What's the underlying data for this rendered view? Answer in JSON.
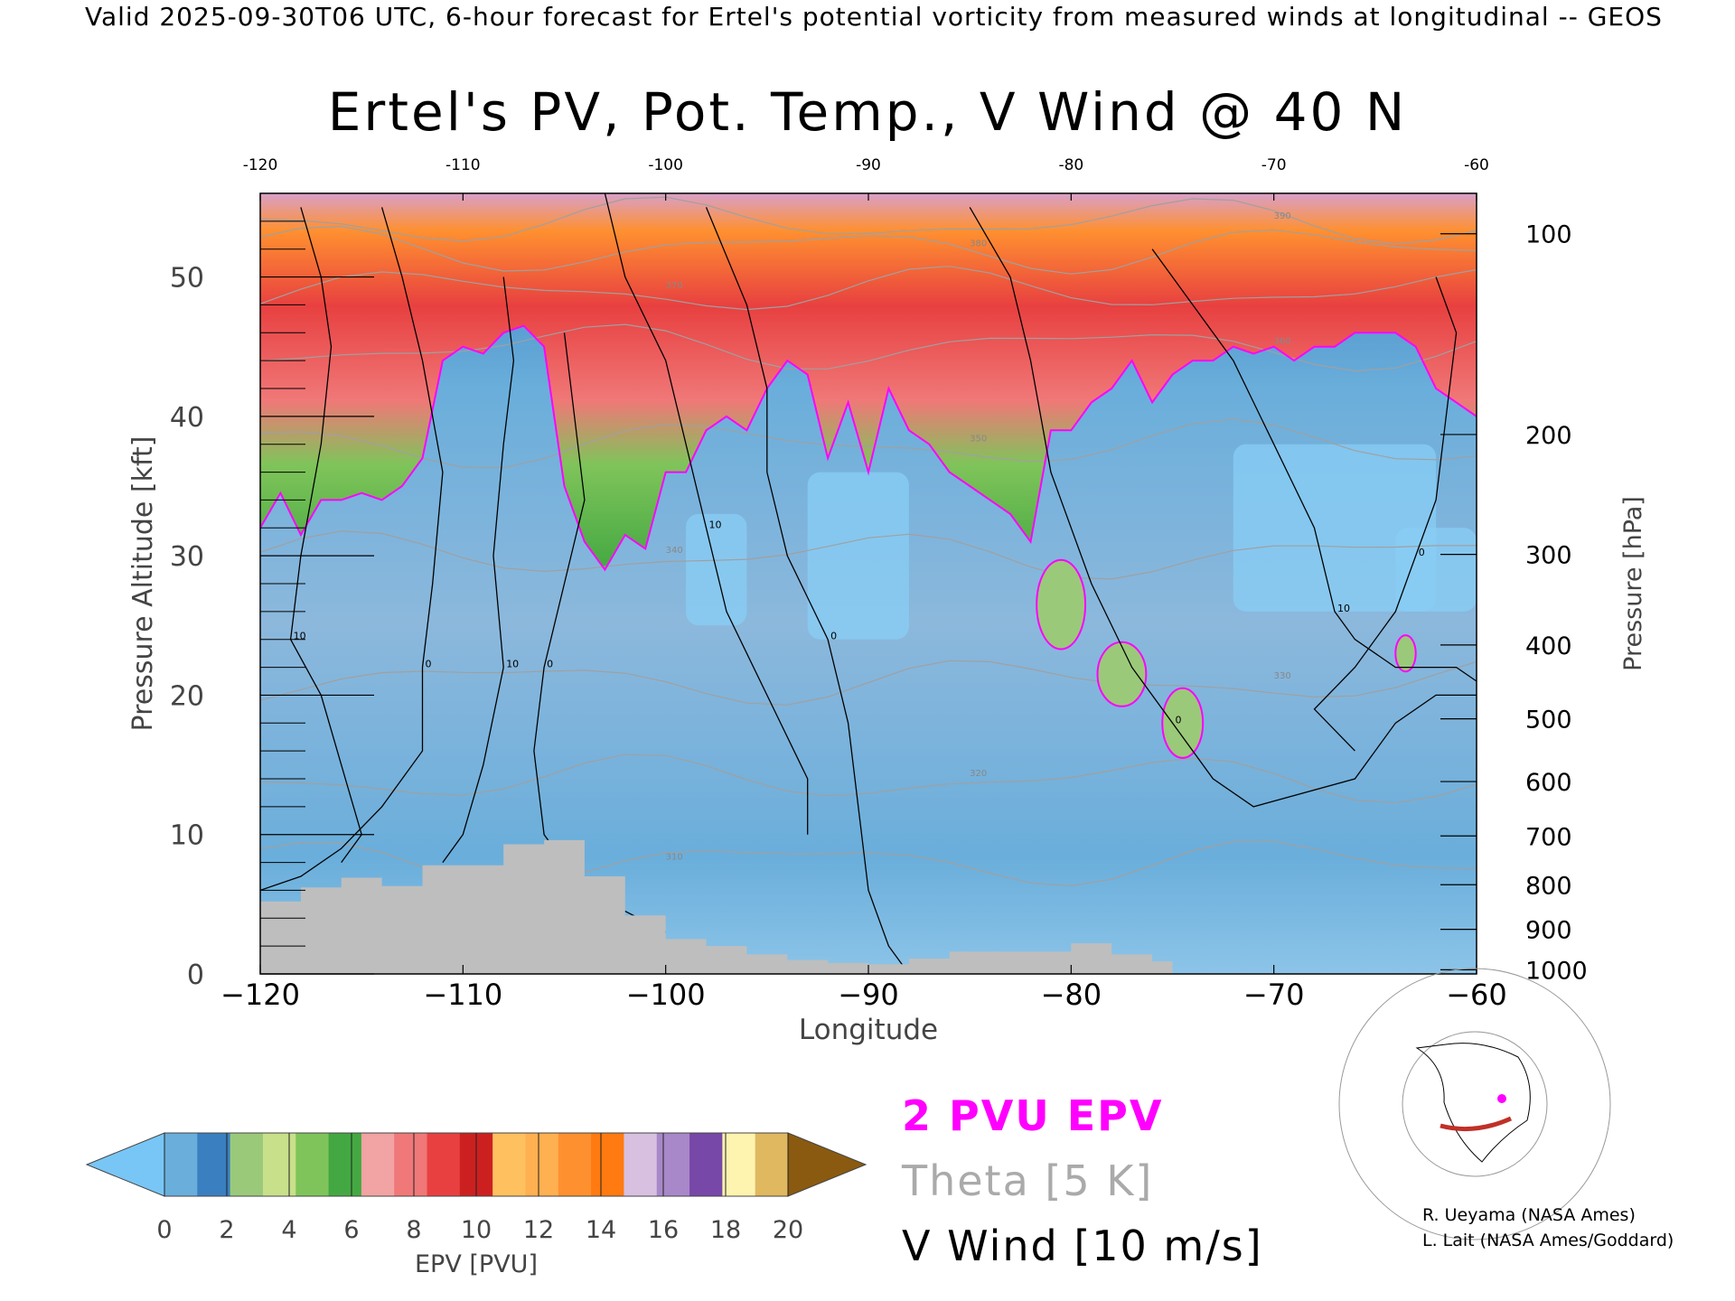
{
  "header": "Valid 2025-09-30T06 UTC, 6-hour forecast for Ertel's potential vorticity from measured winds at longitudinal -- GEOS",
  "title": "Ertel's PV, Pot. Temp., V Wind @ 40 N",
  "legend": {
    "epv_contour": "2 PVU EPV",
    "theta": "Theta [5 K]",
    "vwind": "V Wind [10 m/s]"
  },
  "colors": {
    "epv_contour": "#ff00ff",
    "theta": "#a0a0a0",
    "vwind": "#000000",
    "terrain": "#bebebe",
    "colorbar": [
      "#78c6f5",
      "#6aaedb",
      "#3a7fc0",
      "#9bc97a",
      "#c8e08a",
      "#7fc45a",
      "#44a842",
      "#f2a3a3",
      "#f07878",
      "#e84040",
      "#cc2020",
      "#ffc060",
      "#ffb050",
      "#ff9030",
      "#ff7a10",
      "#d8c0e0",
      "#a888c8",
      "#7848a8",
      "#fff3b0",
      "#e0b860",
      "#8a5a10"
    ]
  },
  "credits": [
    "R. Ueyama (NASA Ames)",
    "L. Lait (NASA Ames/Goddard)"
  ],
  "chart_data": {
    "type": "heatmap",
    "xlabel": "Longitude",
    "ylabel": "Pressure Altitude [kft]",
    "y2label": "Pressure [hPa]",
    "xlim": [
      -120,
      -60
    ],
    "ylim": [
      0,
      56
    ],
    "x_ticks": [
      -120,
      -110,
      -100,
      -90,
      -80,
      -70,
      -60
    ],
    "top_ticks": [
      -120,
      -110,
      -100,
      -90,
      -80,
      -70,
      -60
    ],
    "y_ticks": [
      0,
      10,
      20,
      30,
      40,
      50
    ],
    "pressure_ticks": [
      {
        "label": "100",
        "kft": 53.1
      },
      {
        "label": "200",
        "kft": 38.7
      },
      {
        "label": "300",
        "kft": 30.1
      },
      {
        "label": "400",
        "kft": 23.6
      },
      {
        "label": "500",
        "kft": 18.3
      },
      {
        "label": "600",
        "kft": 13.8
      },
      {
        "label": "700",
        "kft": 9.9
      },
      {
        "label": "800",
        "kft": 6.4
      },
      {
        "label": "900",
        "kft": 3.2
      },
      {
        "label": "1000",
        "kft": 0.3
      }
    ],
    "colorbar": {
      "label": "EPV [PVU]",
      "ticks": [
        0,
        2,
        4,
        6,
        8,
        10,
        12,
        14,
        16,
        18,
        20
      ],
      "extend": "both"
    },
    "tropopause_2pvu": [
      {
        "lon": -120,
        "kft": 32
      },
      {
        "lon": -119,
        "kft": 34.5
      },
      {
        "lon": -118,
        "kft": 31.5
      },
      {
        "lon": -117,
        "kft": 34
      },
      {
        "lon": -116,
        "kft": 34
      },
      {
        "lon": -115,
        "kft": 34.5
      },
      {
        "lon": -114,
        "kft": 34
      },
      {
        "lon": -113,
        "kft": 35
      },
      {
        "lon": -112,
        "kft": 37
      },
      {
        "lon": -111,
        "kft": 44
      },
      {
        "lon": -110,
        "kft": 45
      },
      {
        "lon": -109,
        "kft": 44.5
      },
      {
        "lon": -108,
        "kft": 46
      },
      {
        "lon": -107,
        "kft": 46.5
      },
      {
        "lon": -106,
        "kft": 45
      },
      {
        "lon": -105,
        "kft": 35
      },
      {
        "lon": -104,
        "kft": 31
      },
      {
        "lon": -103,
        "kft": 29
      },
      {
        "lon": -102,
        "kft": 31.5
      },
      {
        "lon": -101,
        "kft": 30.5
      },
      {
        "lon": -100,
        "kft": 36
      },
      {
        "lon": -99,
        "kft": 36
      },
      {
        "lon": -98,
        "kft": 39
      },
      {
        "lon": -97,
        "kft": 40
      },
      {
        "lon": -96,
        "kft": 39
      },
      {
        "lon": -95,
        "kft": 42
      },
      {
        "lon": -94,
        "kft": 44
      },
      {
        "lon": -93,
        "kft": 43
      },
      {
        "lon": -92,
        "kft": 37
      },
      {
        "lon": -91,
        "kft": 41
      },
      {
        "lon": -90,
        "kft": 36
      },
      {
        "lon": -89,
        "kft": 42
      },
      {
        "lon": -88,
        "kft": 39
      },
      {
        "lon": -87,
        "kft": 38
      },
      {
        "lon": -86,
        "kft": 36
      },
      {
        "lon": -85,
        "kft": 35
      },
      {
        "lon": -84,
        "kft": 34
      },
      {
        "lon": -83,
        "kft": 33
      },
      {
        "lon": -82,
        "kft": 31
      },
      {
        "lon": -81,
        "kft": 39
      },
      {
        "lon": -80,
        "kft": 39
      },
      {
        "lon": -79,
        "kft": 41
      },
      {
        "lon": -78,
        "kft": 42
      },
      {
        "lon": -77,
        "kft": 44
      },
      {
        "lon": -76,
        "kft": 41
      },
      {
        "lon": -75,
        "kft": 43
      },
      {
        "lon": -74,
        "kft": 44
      },
      {
        "lon": -73,
        "kft": 44
      },
      {
        "lon": -72,
        "kft": 45
      },
      {
        "lon": -71,
        "kft": 44.5
      },
      {
        "lon": -70,
        "kft": 45
      },
      {
        "lon": -69,
        "kft": 44
      },
      {
        "lon": -68,
        "kft": 45
      },
      {
        "lon": -67,
        "kft": 45
      },
      {
        "lon": -66,
        "kft": 46
      },
      {
        "lon": -65,
        "kft": 46
      },
      {
        "lon": -64,
        "kft": 46
      },
      {
        "lon": -63,
        "kft": 45
      },
      {
        "lon": -62,
        "kft": 42
      },
      {
        "lon": -61,
        "kft": 41
      },
      {
        "lon": -60,
        "kft": 40
      }
    ],
    "terrain": [
      {
        "lon": -120,
        "kft": 5.2
      },
      {
        "lon": -118,
        "kft": 6.2
      },
      {
        "lon": -116,
        "kft": 6.9
      },
      {
        "lon": -114,
        "kft": 6.3
      },
      {
        "lon": -112,
        "kft": 7.8
      },
      {
        "lon": -110,
        "kft": 7.8
      },
      {
        "lon": -108,
        "kft": 9.3
      },
      {
        "lon": -106,
        "kft": 9.6
      },
      {
        "lon": -104,
        "kft": 7.0
      },
      {
        "lon": -102,
        "kft": 4.2
      },
      {
        "lon": -100,
        "kft": 2.5
      },
      {
        "lon": -98,
        "kft": 2.0
      },
      {
        "lon": -96,
        "kft": 1.4
      },
      {
        "lon": -94,
        "kft": 1.0
      },
      {
        "lon": -92,
        "kft": 0.8
      },
      {
        "lon": -90,
        "kft": 0.7
      },
      {
        "lon": -88,
        "kft": 1.1
      },
      {
        "lon": -86,
        "kft": 1.6
      },
      {
        "lon": -84,
        "kft": 1.6
      },
      {
        "lon": -82,
        "kft": 1.6
      },
      {
        "lon": -80,
        "kft": 2.2
      },
      {
        "lon": -78,
        "kft": 1.4
      },
      {
        "lon": -76,
        "kft": 0.9
      },
      {
        "lon": -75,
        "kft": 0
      }
    ],
    "v_wind_contours": [
      {
        "value": 10,
        "points": [
          [
            -118,
            55
          ],
          [
            -117,
            50
          ],
          [
            -116.5,
            45
          ],
          [
            -117,
            38
          ],
          [
            -118,
            30
          ],
          [
            -118.5,
            24
          ],
          [
            -117,
            20
          ],
          [
            -116,
            15
          ],
          [
            -115,
            10
          ],
          [
            -116,
            8
          ]
        ]
      },
      {
        "value": 0,
        "points": [
          [
            -114,
            55
          ],
          [
            -113,
            50
          ],
          [
            -112,
            44
          ],
          [
            -111,
            36
          ],
          [
            -111.5,
            28
          ],
          [
            -112,
            22
          ],
          [
            -112,
            16
          ],
          [
            -114,
            12
          ],
          [
            -116,
            9
          ],
          [
            -118,
            7
          ],
          [
            -120,
            6
          ]
        ]
      },
      {
        "value": 10,
        "points": [
          [
            -108,
            50
          ],
          [
            -107.5,
            44
          ],
          [
            -108,
            38
          ],
          [
            -108.5,
            30
          ],
          [
            -108,
            22
          ],
          [
            -109,
            15
          ],
          [
            -110,
            10
          ],
          [
            -111,
            8
          ]
        ]
      },
      {
        "value": 0,
        "points": [
          [
            -105,
            46
          ],
          [
            -104.5,
            40
          ],
          [
            -104,
            34
          ],
          [
            -105,
            28
          ],
          [
            -106,
            22
          ],
          [
            -106.5,
            16
          ],
          [
            -106,
            10
          ],
          [
            -104,
            6
          ],
          [
            -100,
            3
          ]
        ]
      },
      {
        "value": 10,
        "points": [
          [
            -103,
            56
          ],
          [
            -102,
            50
          ],
          [
            -100,
            44
          ],
          [
            -99,
            38
          ],
          [
            -98,
            32
          ],
          [
            -97,
            26
          ],
          [
            -95,
            20
          ],
          [
            -93,
            14
          ],
          [
            -93,
            10
          ]
        ]
      },
      {
        "value": 0,
        "points": [
          [
            -98,
            55
          ],
          [
            -96,
            48
          ],
          [
            -95,
            42
          ],
          [
            -95,
            36
          ],
          [
            -94,
            30
          ],
          [
            -92,
            24
          ],
          [
            -91,
            18
          ],
          [
            -90.5,
            12
          ],
          [
            -90,
            6
          ],
          [
            -89,
            2
          ],
          [
            -88,
            0
          ]
        ]
      },
      {
        "value": 0,
        "points": [
          [
            -85,
            55
          ],
          [
            -83,
            50
          ],
          [
            -82,
            44
          ],
          [
            -81,
            36
          ],
          [
            -79,
            28
          ],
          [
            -77,
            22
          ],
          [
            -75,
            18
          ],
          [
            -73,
            14
          ],
          [
            -71,
            12
          ],
          [
            -66,
            14
          ],
          [
            -64,
            18
          ],
          [
            -62,
            20
          ],
          [
            -60,
            20
          ]
        ]
      },
      {
        "value": 10,
        "points": [
          [
            -76,
            52
          ],
          [
            -74,
            48
          ],
          [
            -72,
            44
          ],
          [
            -70,
            38
          ],
          [
            -68,
            32
          ],
          [
            -67,
            26
          ],
          [
            -66,
            24
          ],
          [
            -64,
            22
          ],
          [
            -61,
            22
          ],
          [
            -60,
            21
          ]
        ]
      },
      {
        "value": 0,
        "points": [
          [
            -62,
            50
          ],
          [
            -61,
            46
          ],
          [
            -61.5,
            40
          ],
          [
            -62,
            34
          ],
          [
            -63,
            30
          ],
          [
            -64,
            26
          ],
          [
            -66,
            22
          ],
          [
            -68,
            19
          ],
          [
            -66,
            16
          ]
        ]
      }
    ],
    "theta_levels": [
      {
        "label": "310",
        "base": 8
      },
      {
        "label": "320",
        "base": 14
      },
      {
        "label": "330",
        "base": 21
      },
      {
        "label": "340",
        "base": 30
      },
      {
        "label": "350",
        "base": 38
      },
      {
        "label": "360",
        "base": 45
      },
      {
        "label": "370",
        "base": 49
      },
      {
        "label": "380",
        "base": 52
      },
      {
        "label": "390",
        "base": 54
      }
    ]
  }
}
